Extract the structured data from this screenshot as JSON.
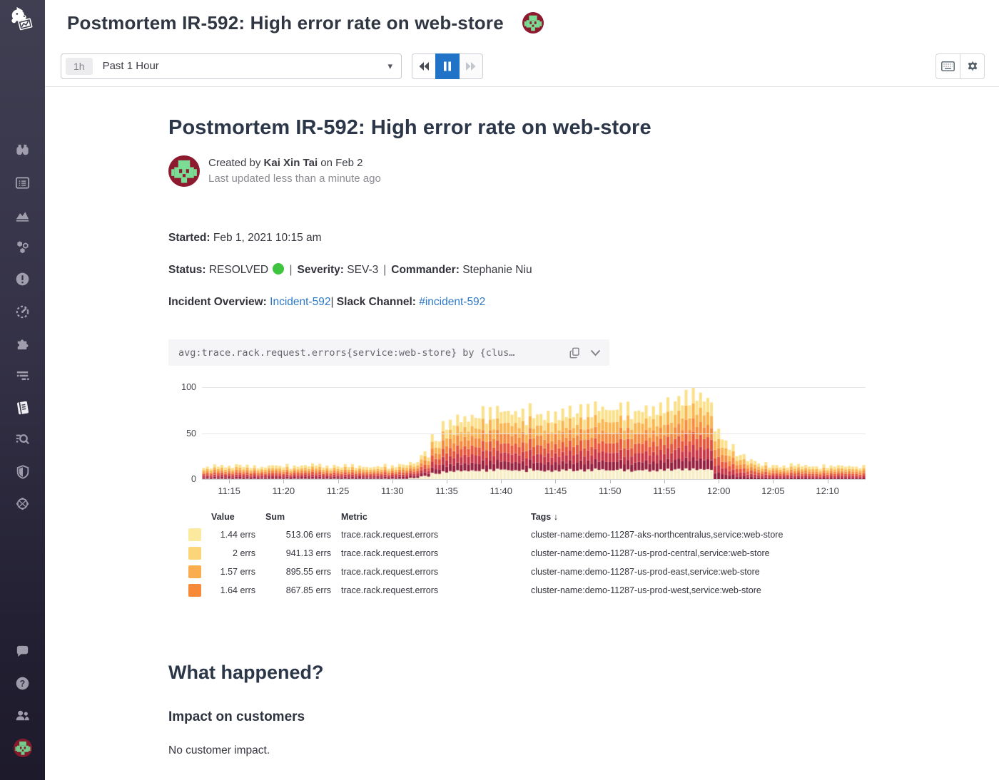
{
  "colors": {
    "accent_blue": "#2173c8",
    "link_blue": "#2d79c7",
    "status_green": "#3fc43f",
    "sidebar_bg": "#37344a",
    "active_icon": "#ffffff",
    "inactive_icon": "#a9a6b5"
  },
  "sidebar": {
    "active": "notebooks",
    "items": [
      "watchdog",
      "dashboards",
      "metrics",
      "infrastructure",
      "monitors",
      "apm",
      "integrations",
      "logs",
      "notebooks",
      "log-explorer",
      "security",
      "synthetics"
    ],
    "bottom_items": [
      "chat",
      "help",
      "users",
      "user-avatar"
    ]
  },
  "toolbar": {
    "range_chip": "1h",
    "range_label": "Past 1 Hour",
    "caret": "▾",
    "playback": [
      "step-back",
      "pause",
      "step-forward"
    ],
    "right_buttons": [
      "keyboard-shortcuts",
      "settings"
    ]
  },
  "doc": {
    "title": "Postmortem IR-592: High error rate on web-store",
    "byline": {
      "prefix": "Created by",
      "author": "Kai Xin Tai",
      "suffix": "on Feb 2",
      "updated": "Last updated less than a minute ago"
    },
    "meta": {
      "started_label": "Started:",
      "started_value": "Feb 1, 2021 10:15 am",
      "status_label": "Status:",
      "status_value": "RESOLVED",
      "status_dot_color": "#3fc43f",
      "sep": "|",
      "severity_label": "Severity:",
      "severity_value": "SEV-3",
      "commander_label": "Commander:",
      "commander_value": "Stephanie Niu",
      "overview_label": "Incident Overview:",
      "overview_link": "Incident-592",
      "overview_sep": "|",
      "slack_label": "Slack Channel:",
      "slack_link": "#incident-592"
    },
    "query": "avg:trace.rack.request.errors{service:web-store} by {clus…",
    "sections": {
      "heading": "What happened?",
      "subheading": "Impact on customers",
      "body": "No customer impact."
    }
  },
  "chart_data": {
    "type": "stacked_bar",
    "unit": "errs",
    "x_start": "11:13",
    "x_end": "12:13",
    "ylim": [
      0,
      100
    ],
    "y_ticks": [
      0,
      50,
      100
    ],
    "grid": true,
    "legend_position": "bottom-table",
    "x_ticks": [
      {
        "m": 2,
        "label": "11:15"
      },
      {
        "m": 7,
        "label": "11:20"
      },
      {
        "m": 12,
        "label": "11:25"
      },
      {
        "m": 17,
        "label": "11:30"
      },
      {
        "m": 22,
        "label": "11:35"
      },
      {
        "m": 27,
        "label": "11:40"
      },
      {
        "m": 32,
        "label": "11:45"
      },
      {
        "m": 37,
        "label": "11:50"
      },
      {
        "m": 42,
        "label": "11:55"
      },
      {
        "m": 47,
        "label": "12:00"
      },
      {
        "m": 52,
        "label": "12:05"
      },
      {
        "m": 57,
        "label": "12:10"
      }
    ],
    "series": [
      {
        "name": "series-cream-bottom",
        "color": "#f8eec6",
        "values": [
          1,
          1,
          1,
          1,
          1,
          1,
          1,
          1,
          1,
          1,
          1,
          1,
          1,
          1,
          1,
          1,
          1,
          1,
          1,
          2,
          4,
          7,
          9,
          10,
          10,
          10,
          10,
          11,
          10,
          10,
          11,
          10,
          10,
          11,
          10,
          10,
          11,
          10,
          11,
          10,
          11,
          10,
          11,
          11,
          11,
          11,
          11,
          0,
          0,
          0,
          0,
          0,
          0,
          0,
          0,
          0,
          0,
          0,
          0,
          0,
          0
        ]
      },
      {
        "name": "series-maroon",
        "color": "#951d3c",
        "values": [
          1.7,
          2.0,
          1.8,
          2.1,
          2.0,
          1.8,
          2.1,
          2.0,
          1.8,
          2.0,
          2.1,
          1.8,
          2.0,
          2.1,
          2.0,
          1.8,
          2.0,
          1.8,
          2.1,
          2.2,
          3.4,
          5.3,
          7.4,
          8.1,
          8.1,
          8.4,
          8.3,
          8.7,
          8.5,
          8.4,
          8.8,
          8.7,
          8.5,
          9.0,
          8.8,
          8.7,
          9.1,
          9.0,
          9.2,
          9.1,
          9.5,
          9.4,
          9.8,
          10.1,
          10.5,
          10.9,
          10.4,
          7.3,
          5.3,
          3.9,
          3.1,
          2.4,
          2.1,
          2.0,
          2.2,
          2.1,
          2.0,
          2.1,
          2.2,
          2.1,
          2.0
        ]
      },
      {
        "name": "series-crimson",
        "color": "#c93343",
        "values": [
          1.8,
          2.1,
          2.0,
          2.3,
          2.1,
          2.0,
          2.3,
          2.1,
          2.0,
          2.1,
          2.3,
          2.0,
          2.1,
          2.3,
          2.1,
          2.0,
          2.1,
          2.0,
          2.3,
          2.4,
          3.6,
          5.7,
          8.0,
          8.7,
          8.7,
          9.0,
          8.9,
          9.3,
          9.2,
          9.0,
          9.5,
          9.3,
          9.2,
          9.6,
          9.5,
          9.3,
          9.8,
          9.6,
          9.9,
          9.8,
          10.2,
          10.1,
          10.5,
          10.8,
          11.3,
          11.7,
          11.1,
          7.8,
          5.7,
          4.2,
          3.3,
          2.6,
          2.3,
          2.1,
          2.4,
          2.3,
          2.1,
          2.3,
          2.4,
          2.3,
          2.1
        ]
      },
      {
        "name": "series-red-orange",
        "color": "#e85439",
        "values": [
          1.9,
          2.2,
          2.1,
          2.4,
          2.2,
          2.1,
          2.4,
          2.2,
          2.1,
          2.2,
          2.4,
          2.1,
          2.2,
          2.4,
          2.2,
          2.1,
          2.2,
          2.1,
          2.4,
          2.6,
          3.8,
          6.1,
          8.5,
          9.3,
          9.3,
          9.6,
          9.4,
          9.9,
          9.8,
          9.6,
          10.1,
          9.9,
          9.8,
          10.2,
          10.1,
          9.9,
          10.4,
          10.2,
          10.6,
          10.4,
          10.9,
          10.7,
          11.2,
          11.5,
          12.0,
          12.5,
          11.8,
          8.3,
          6.1,
          4.5,
          3.5,
          2.7,
          2.4,
          2.2,
          2.6,
          2.4,
          2.2,
          2.4,
          2.6,
          2.4,
          2.2
        ]
      },
      {
        "name": "series-orange",
        "color": "#f58a3d",
        "values": [
          2.0,
          2.4,
          2.2,
          2.6,
          2.4,
          2.2,
          2.6,
          2.4,
          2.2,
          2.4,
          2.6,
          2.2,
          2.4,
          2.6,
          2.4,
          2.2,
          2.4,
          2.2,
          2.6,
          2.7,
          4.1,
          6.5,
          9.0,
          9.9,
          9.9,
          10.2,
          10.0,
          10.5,
          10.4,
          10.2,
          10.7,
          10.5,
          10.4,
          10.9,
          10.7,
          10.5,
          11.1,
          10.9,
          11.2,
          11.1,
          11.6,
          11.4,
          11.9,
          12.2,
          12.8,
          13.3,
          12.6,
          8.8,
          6.5,
          4.8,
          3.7,
          2.9,
          2.6,
          2.4,
          2.7,
          2.6,
          2.4,
          2.6,
          2.7,
          2.6,
          2.4
        ]
      },
      {
        "name": "series-amber",
        "color": "#f9b44e",
        "values": [
          2.2,
          2.5,
          2.3,
          2.7,
          2.5,
          2.3,
          2.7,
          2.5,
          2.3,
          2.5,
          2.7,
          2.3,
          2.5,
          2.7,
          2.5,
          2.3,
          2.5,
          2.3,
          2.7,
          2.9,
          4.3,
          6.8,
          9.5,
          10.4,
          10.4,
          10.8,
          10.6,
          11.2,
          11.0,
          10.8,
          11.3,
          11.2,
          11.0,
          11.5,
          11.3,
          11.2,
          11.7,
          11.5,
          11.9,
          11.7,
          12.2,
          12.1,
          12.6,
          13.0,
          13.5,
          14.0,
          13.3,
          9.4,
          6.8,
          5.0,
          4.0,
          3.1,
          2.7,
          2.5,
          2.9,
          2.7,
          2.5,
          2.7,
          2.9,
          2.7,
          2.5
        ]
      },
      {
        "name": "series-pale-yellow",
        "color": "#fbe08a",
        "values": [
          2.4,
          2.8,
          2.6,
          3.0,
          2.8,
          2.6,
          3.0,
          2.8,
          2.6,
          2.8,
          3.0,
          2.6,
          2.8,
          3.0,
          2.8,
          2.6,
          2.8,
          2.6,
          3.0,
          3.2,
          4.8,
          7.6,
          10.6,
          11.6,
          11.6,
          12.0,
          11.8,
          12.4,
          12.2,
          12.0,
          12.6,
          12.4,
          12.2,
          12.8,
          12.6,
          12.4,
          13.0,
          12.8,
          13.2,
          13.0,
          13.6,
          13.4,
          14.0,
          14.4,
          15.0,
          15.6,
          14.8,
          10.4,
          7.6,
          5.6,
          4.4,
          3.4,
          3.0,
          2.8,
          3.2,
          3.0,
          2.8,
          3.0,
          3.2,
          3.0,
          2.8
        ]
      }
    ]
  },
  "legend": {
    "headers": [
      "Value",
      "Sum",
      "Metric",
      "Tags ↓"
    ],
    "rows": [
      {
        "color": "#fce9a0",
        "value": "1.44 errs",
        "sum": "513.06 errs",
        "metric": "trace.rack.request.errors",
        "tags": "cluster-name:demo-11287-aks-northcentralus,service:web-store"
      },
      {
        "color": "#fbd577",
        "value": "2 errs",
        "sum": "941.13 errs",
        "metric": "trace.rack.request.errors",
        "tags": "cluster-name:demo-11287-us-prod-central,service:web-store"
      },
      {
        "color": "#f9ad4e",
        "value": "1.57 errs",
        "sum": "895.55 errs",
        "metric": "trace.rack.request.errors",
        "tags": "cluster-name:demo-11287-us-prod-east,service:web-store"
      },
      {
        "color": "#f68a39",
        "value": "1.64 errs",
        "sum": "867.85 errs",
        "metric": "trace.rack.request.errors",
        "tags": "cluster-name:demo-11287-us-prod-west,service:web-store"
      },
      {
        "color": "#ee4e28",
        "value": "",
        "sum": "",
        "metric": "",
        "tags": ""
      }
    ]
  }
}
